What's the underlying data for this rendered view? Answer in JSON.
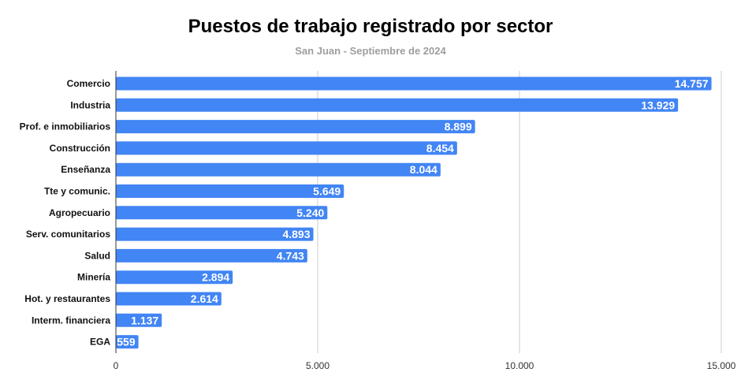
{
  "chart_data": {
    "type": "bar",
    "orientation": "horizontal",
    "title": "Puestos de trabajo registrado por sector",
    "subtitle": "San Juan - Septiembre de 2024",
    "categories": [
      "Comercio",
      "Industria",
      "Prof. e inmobiliarios",
      "Construcción",
      "Enseñanza",
      "Tte y comunic.",
      "Agropecuario",
      "Serv. comunitarios",
      "Salud",
      "Minería",
      "Hot. y restaurantes",
      "Interm. financiera",
      "EGA"
    ],
    "values": [
      14757,
      13929,
      8899,
      8454,
      8044,
      5649,
      5240,
      4893,
      4743,
      2894,
      2614,
      1137,
      559
    ],
    "value_labels": [
      "14.757",
      "13.929",
      "8.899",
      "8.454",
      "8.044",
      "5.649",
      "5.240",
      "4.893",
      "4.743",
      "2.894",
      "2.614",
      "1.137",
      "559"
    ],
    "xlim": [
      0,
      15000
    ],
    "xticks": [
      0,
      5000,
      10000,
      15000
    ],
    "xtick_labels": [
      "0",
      "5.000",
      "10.000",
      "15.000"
    ],
    "grid": true,
    "bar_color": "#4285f4",
    "grid_color": "#cccccc"
  }
}
